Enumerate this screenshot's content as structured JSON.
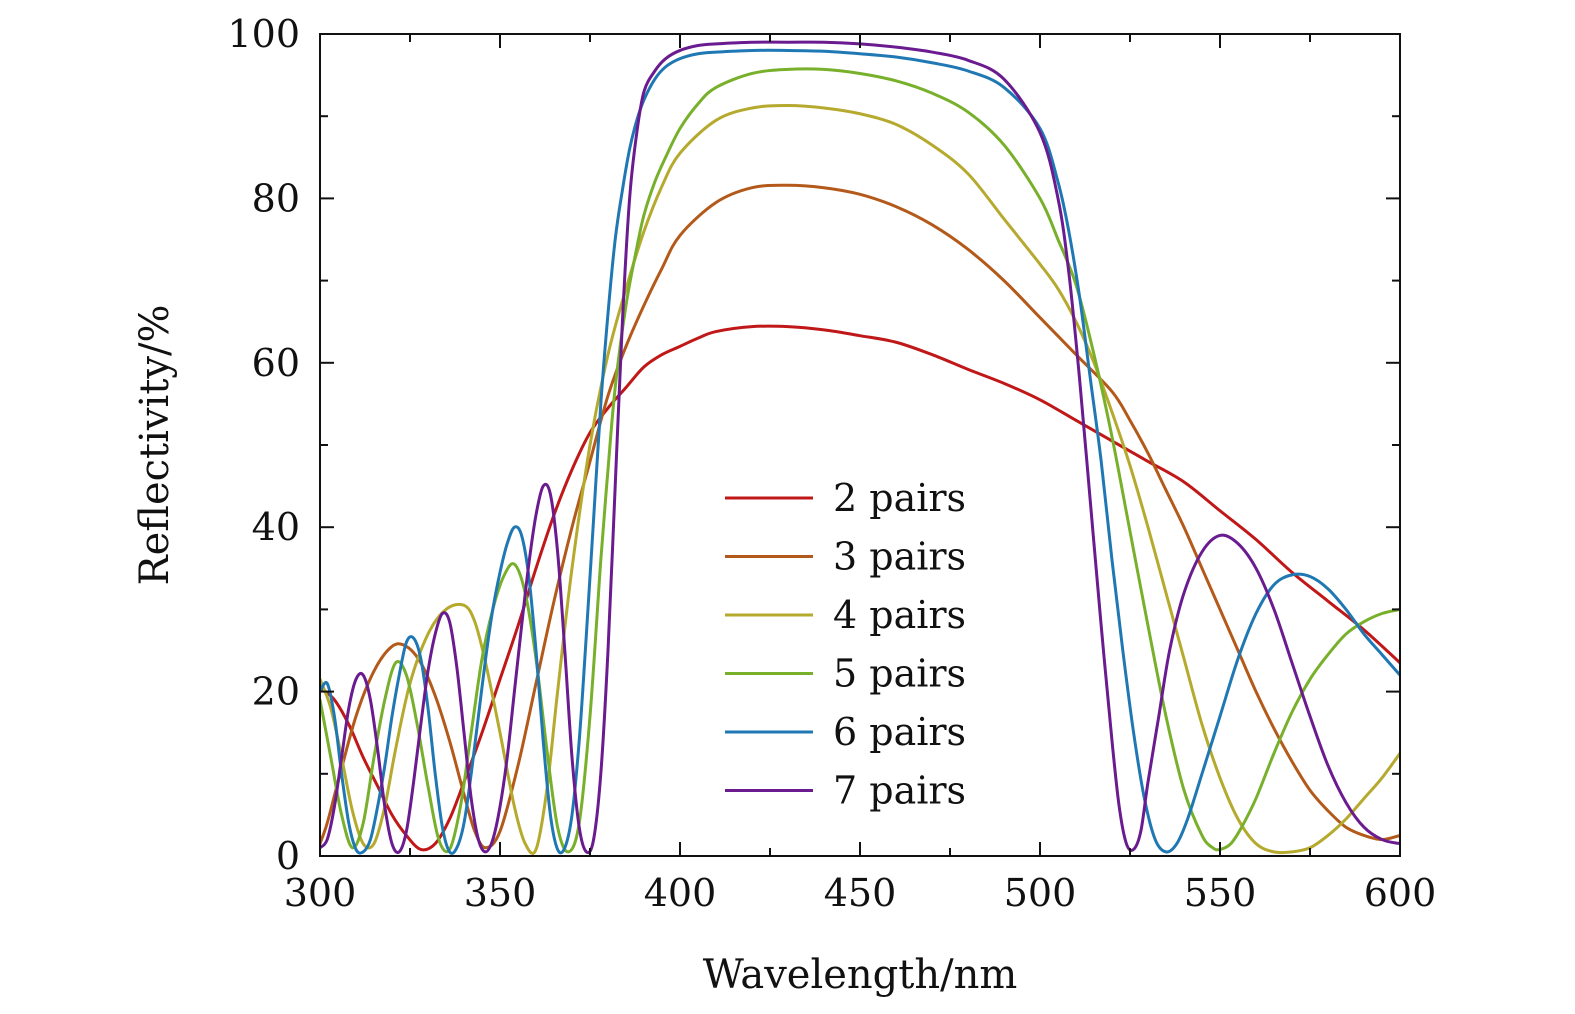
{
  "chart_data": {
    "type": "line",
    "xlabel": "Wavelength/nm",
    "ylabel": "Reflectivity/%",
    "xlim": [
      300,
      600
    ],
    "ylim": [
      0,
      100
    ],
    "x_ticks": [
      300,
      350,
      400,
      450,
      500,
      550,
      600
    ],
    "y_ticks": [
      0,
      20,
      40,
      60,
      80,
      100
    ],
    "grid": false,
    "legend_position": "center-right",
    "series": [
      {
        "name": "2 pairs",
        "color": "#c01818",
        "x": [
          300,
          304,
          308,
          312,
          316,
          320,
          324,
          328,
          332,
          336,
          340,
          345,
          350,
          355,
          360,
          365,
          370,
          375,
          380,
          385,
          390,
          395,
          400,
          405,
          410,
          420,
          430,
          440,
          450,
          460,
          470,
          480,
          490,
          500,
          510,
          520,
          530,
          540,
          550,
          560,
          570,
          580,
          590,
          600
        ],
        "y": [
          20.5,
          19,
          16,
          12,
          8.5,
          5,
          2.5,
          0.8,
          1.5,
          4.5,
          9,
          15,
          21.5,
          28,
          35,
          41.5,
          47,
          51.5,
          54.5,
          57,
          59.5,
          61,
          62,
          63,
          63.8,
          64.4,
          64.4,
          64,
          63.3,
          62.5,
          61,
          59.2,
          57.5,
          55.5,
          53,
          50.5,
          48,
          45.5,
          42,
          38.5,
          34.5,
          31,
          27.5,
          23.5
        ]
      },
      {
        "name": "3 pairs",
        "color": "#b35a1a",
        "x": [
          300,
          302,
          305,
          310,
          315,
          320,
          324,
          328,
          332,
          336,
          340,
          343,
          346,
          350,
          355,
          360,
          365,
          370,
          375,
          380,
          385,
          390,
          395,
          400,
          410,
          420,
          430,
          440,
          450,
          460,
          470,
          480,
          490,
          500,
          510,
          520,
          525,
          530,
          535,
          540,
          545,
          550,
          555,
          560,
          565,
          570,
          575,
          580,
          585,
          590,
          595,
          600
        ],
        "y": [
          1.5,
          4,
          9,
          17,
          22.5,
          25.5,
          25.5,
          23.5,
          19.5,
          14,
          7.5,
          3,
          1,
          3,
          11,
          21,
          31,
          40,
          48,
          56,
          62,
          67,
          71.5,
          75.5,
          79.5,
          81.3,
          81.6,
          81.3,
          80.5,
          79,
          76.8,
          73.8,
          70,
          65.5,
          61,
          56.5,
          53,
          49,
          44.5,
          40,
          35,
          30,
          25,
          20,
          15.5,
          11.5,
          8,
          5.5,
          3.5,
          2.5,
          2,
          2.5
        ]
      },
      {
        "name": "4 pairs",
        "color": "#b5aa2e",
        "x": [
          300,
          303,
          306,
          309,
          312,
          315,
          318,
          321,
          325,
          330,
          335,
          340,
          343,
          346,
          350,
          354,
          357,
          360,
          363,
          366,
          370,
          375,
          380,
          385,
          390,
          395,
          400,
          410,
          420,
          430,
          440,
          450,
          460,
          470,
          480,
          490,
          500,
          505,
          510,
          515,
          520,
          525,
          530,
          535,
          540,
          545,
          550,
          555,
          560,
          565,
          570,
          575,
          580,
          585,
          590,
          595,
          600
        ],
        "y": [
          21.5,
          18,
          12,
          5.5,
          1.5,
          1.5,
          6,
          13,
          21,
          27,
          30,
          30.5,
          28.5,
          23.5,
          15,
          6,
          1.5,
          0.8,
          8,
          20,
          35,
          50,
          61,
          69,
          76,
          81.5,
          85.5,
          89.5,
          91,
          91.3,
          91,
          90.3,
          89,
          86.5,
          83,
          77.5,
          72,
          69,
          65,
          60,
          54,
          47.5,
          40,
          32,
          24,
          16,
          9.5,
          4.5,
          1.5,
          0.5,
          0.5,
          1,
          2.5,
          4.5,
          7,
          9.5,
          12.5
        ]
      },
      {
        "name": "5 pairs",
        "color": "#78b02c",
        "x": [
          300,
          303,
          306,
          309,
          312,
          315,
          318,
          321,
          324,
          327,
          330,
          333,
          336,
          339,
          342,
          345,
          348,
          351,
          354,
          357,
          360,
          363,
          366,
          369,
          372,
          375,
          378,
          380,
          382,
          385,
          388,
          390,
          393,
          396,
          400,
          405,
          410,
          420,
          430,
          440,
          450,
          460,
          470,
          480,
          490,
          500,
          505,
          510,
          515,
          520,
          525,
          530,
          535,
          540,
          545,
          548,
          550,
          553,
          556,
          560,
          565,
          570,
          575,
          580,
          585,
          590,
          595,
          600
        ],
        "y": [
          19,
          12,
          5,
          1,
          4,
          12,
          19,
          23.5,
          22,
          16,
          8.5,
          2,
          0.8,
          6,
          15,
          24,
          30,
          34,
          35.5,
          32,
          24,
          13,
          3.5,
          0.5,
          4,
          17,
          36,
          47,
          57,
          67,
          74,
          78,
          82,
          85,
          88.5,
          91.5,
          93.5,
          95.2,
          95.7,
          95.7,
          95.2,
          94.3,
          92.8,
          90.5,
          86.5,
          80,
          75,
          69.5,
          61,
          51,
          39.5,
          28,
          17,
          8,
          2.5,
          1,
          0.8,
          1.5,
          3.5,
          7,
          12.5,
          17.5,
          21.5,
          24.5,
          27,
          28.5,
          29.5,
          30
        ]
      },
      {
        "name": "6 pairs",
        "color": "#1f78b4",
        "x": [
          300,
          302,
          304,
          306,
          308,
          310,
          312,
          314,
          316,
          318,
          320,
          322,
          324,
          326,
          328,
          330,
          332,
          334,
          336,
          338,
          340,
          342,
          344,
          346,
          348,
          350,
          352,
          354,
          356,
          358,
          360,
          362,
          364,
          366,
          368,
          370,
          372,
          374,
          376,
          378,
          380,
          382,
          384,
          386,
          388,
          390,
          393,
          396,
          400,
          405,
          410,
          420,
          430,
          440,
          450,
          460,
          470,
          480,
          490,
          500,
          505,
          508,
          511,
          514,
          517,
          520,
          523,
          526,
          529,
          532,
          535,
          538,
          541,
          545,
          550,
          555,
          560,
          565,
          570,
          575,
          580,
          585,
          590,
          595,
          600
        ],
        "y": [
          20,
          21,
          17,
          10,
          4,
          0.8,
          0.5,
          2,
          6,
          11,
          17,
          22,
          26,
          26.5,
          24,
          18,
          10,
          3.5,
          0.5,
          1,
          4,
          10,
          17,
          24,
          30,
          34.5,
          38,
          40,
          39,
          34,
          25,
          14,
          5,
          0.8,
          1,
          5,
          14,
          27,
          41,
          55,
          66,
          75,
          81,
          86,
          89.5,
          92,
          94.5,
          96,
          97,
          97.6,
          97.8,
          98,
          98,
          97.9,
          97.6,
          97.2,
          96.5,
          95.5,
          93.5,
          88.5,
          82,
          76,
          68,
          58,
          48,
          36,
          25,
          15,
          7,
          2,
          0.5,
          1.5,
          4.5,
          10,
          17,
          24,
          29.5,
          33,
          34.2,
          34,
          32.5,
          30,
          27,
          24.5,
          22
        ]
      },
      {
        "name": "7 pairs",
        "color": "#6a1b8f",
        "x": [
          300,
          302,
          304,
          306,
          308,
          310,
          312,
          314,
          316,
          318,
          320,
          322,
          324,
          326,
          328,
          330,
          332,
          334,
          336,
          338,
          340,
          342,
          344,
          346,
          348,
          350,
          352,
          354,
          356,
          358,
          360,
          362,
          364,
          366,
          368,
          370,
          372,
          374,
          376,
          378,
          380,
          382,
          384,
          386,
          388,
          390,
          393,
          396,
          400,
          405,
          410,
          420,
          430,
          440,
          450,
          460,
          470,
          480,
          490,
          500,
          505,
          508,
          511,
          514,
          517,
          520,
          522,
          524,
          526,
          528,
          530,
          533,
          536,
          540,
          545,
          550,
          555,
          560,
          565,
          570,
          575,
          580,
          585,
          590,
          595,
          600
        ],
        "y": [
          1,
          2,
          6,
          12,
          18,
          21.5,
          22,
          19,
          13,
          6,
          1.5,
          0.5,
          3,
          9,
          16,
          22.5,
          27,
          29.5,
          28.5,
          23,
          15,
          7,
          2,
          0.5,
          2,
          6,
          12,
          20,
          28,
          35.5,
          41.5,
          45,
          44,
          37,
          25,
          12,
          3.5,
          0.5,
          2,
          10,
          25,
          45,
          65,
          80,
          88,
          93,
          95.5,
          97,
          98,
          98.6,
          98.8,
          99,
          99,
          99,
          98.8,
          98.4,
          97.8,
          96.8,
          94.5,
          88,
          80,
          71,
          58,
          43,
          28,
          14,
          6,
          1.5,
          0.8,
          3,
          9,
          17,
          25,
          32,
          37,
          39,
          38,
          35,
          30,
          23.5,
          17,
          11,
          6.5,
          3.5,
          2,
          1.5
        ]
      }
    ]
  }
}
